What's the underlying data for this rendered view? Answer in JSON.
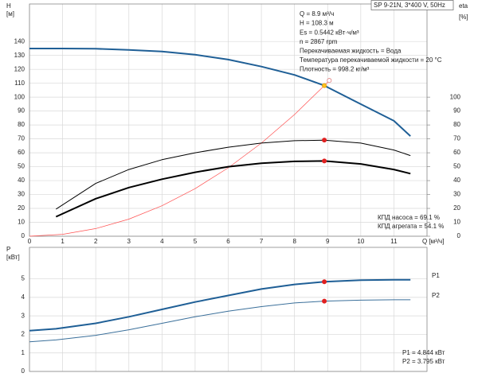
{
  "chart_data": [
    {
      "type": "line",
      "model": "SP 9-21N, 3*400 V, 50Hz",
      "info_lines": [
        "Q = 8.9 м³/ч",
        "H = 108.3 м",
        "Es = 0.5442 кВт·ч/м³",
        "n = 2867 rpm",
        "Перекачиваемая жидкость = Вода",
        "Температура перекачиваемой жидкости = 20 °C",
        "Плотность = 998.2 кг/м³"
      ],
      "result_lines": [
        "КПД насоса = 69.1 %",
        "КПД агрегата = 54.1 %"
      ],
      "ylabel": [
        "H",
        "[м]"
      ],
      "y2label": [
        "eta",
        "[%]"
      ],
      "xlabel": "Q [м³/ч]",
      "xlim": [
        0,
        12
      ],
      "xticks": [
        0,
        1,
        2,
        3,
        4,
        5,
        6,
        7,
        8,
        9,
        10,
        11
      ],
      "ylim": [
        0,
        167
      ],
      "yticks": [
        0,
        10,
        20,
        30,
        40,
        50,
        60,
        70,
        80,
        90,
        100,
        110,
        120,
        130,
        140
      ],
      "y2lim": [
        0,
        167
      ],
      "y2ticks": [
        0,
        10,
        20,
        30,
        40,
        50,
        60,
        70,
        80,
        90,
        100
      ],
      "grid": true,
      "series": [
        {
          "color": "#1f5f96",
          "width": 2,
          "axis": "y",
          "x": [
            0,
            1,
            2,
            3,
            4,
            5,
            6,
            7,
            8,
            8.9,
            10,
            11,
            11.5
          ],
          "values": [
            135,
            135,
            134.8,
            134,
            132.8,
            130.5,
            127,
            122,
            116,
            108.3,
            95,
            83,
            72
          ]
        },
        {
          "color": "#ff5050",
          "width": 0.7,
          "axis": "y",
          "x": [
            0,
            1,
            2,
            3,
            4,
            5,
            6,
            7,
            8,
            8.9,
            9.05
          ],
          "values": [
            0,
            1.4,
            5.5,
            12.3,
            21.9,
            34.2,
            49.2,
            67,
            87.5,
            108.3,
            112
          ]
        },
        {
          "color": "#000000",
          "width": 1,
          "axis": "y2",
          "x": [
            0.8,
            2,
            3,
            4,
            5,
            6,
            7,
            8,
            8.9,
            10,
            11,
            11.5
          ],
          "values": [
            19.5,
            38,
            48,
            55,
            60,
            64,
            67,
            68.7,
            69.1,
            67,
            62,
            58
          ]
        },
        {
          "color": "#000000",
          "width": 2,
          "axis": "y2",
          "x": [
            0.8,
            2,
            3,
            4,
            5,
            6,
            7,
            8,
            8.9,
            10,
            11,
            11.5
          ],
          "values": [
            14,
            27,
            35,
            41,
            46,
            50,
            52.5,
            53.8,
            54.1,
            52,
            48,
            45
          ]
        }
      ],
      "points": [
        {
          "x": 8.9,
          "y": 108.3,
          "axis": "y",
          "color": "#e0a000",
          "fill": "#ffc020"
        },
        {
          "x": 9.05,
          "y": 112,
          "axis": "y",
          "color": "#e08080",
          "fill": "#ffffff"
        },
        {
          "x": 8.9,
          "y": 69.1,
          "axis": "y2",
          "color": "#e02020",
          "fill": "#e02020"
        },
        {
          "x": 8.9,
          "y": 54.1,
          "axis": "y2",
          "color": "#e02020",
          "fill": "#e02020"
        }
      ]
    },
    {
      "type": "line",
      "ylabel": [
        "P",
        "[кВт]"
      ],
      "result_lines": [
        "P1 = 4.844 кВт",
        "P2 = 3.795 кВт"
      ],
      "xlim": [
        0,
        12
      ],
      "xticks": [
        0,
        1,
        2,
        3,
        4,
        5,
        6,
        7,
        8,
        9,
        10,
        11
      ],
      "xtick_labels": false,
      "ylim": [
        0,
        6.7
      ],
      "yticks": [
        0,
        1,
        2,
        3,
        4,
        5
      ],
      "grid": true,
      "series": [
        {
          "name": "P1",
          "color": "#1f5f96",
          "width": 2,
          "axis": "y",
          "x": [
            0,
            0.8,
            2,
            3,
            4,
            5,
            6,
            7,
            8,
            8.9,
            10,
            11,
            11.5
          ],
          "values": [
            2.2,
            2.3,
            2.6,
            2.95,
            3.35,
            3.75,
            4.1,
            4.45,
            4.7,
            4.844,
            4.93,
            4.95,
            4.95
          ]
        },
        {
          "name": "P2",
          "color": "#3a6f9a",
          "width": 1,
          "axis": "y",
          "x": [
            0,
            0.8,
            2,
            3,
            4,
            5,
            6,
            7,
            8,
            8.9,
            10,
            11,
            11.5
          ],
          "values": [
            1.6,
            1.7,
            1.95,
            2.25,
            2.6,
            2.95,
            3.25,
            3.5,
            3.7,
            3.795,
            3.85,
            3.87,
            3.87
          ]
        }
      ],
      "points": [
        {
          "x": 8.9,
          "y": 4.844,
          "axis": "y",
          "color": "#e02020",
          "fill": "#e02020"
        },
        {
          "x": 8.9,
          "y": 3.795,
          "axis": "y",
          "color": "#e02020",
          "fill": "#e02020"
        }
      ]
    }
  ]
}
